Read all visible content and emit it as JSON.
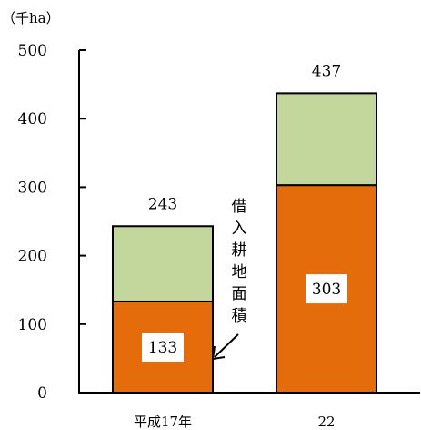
{
  "chart_data": {
    "type": "bar",
    "stacked": true,
    "unit_label": "（千ha）",
    "categories": [
      "平成17年",
      "22"
    ],
    "series": [
      {
        "values": [
          133,
          303
        ],
        "color": "#E46C0A"
      },
      {
        "values": [
          110,
          134
        ],
        "color": "#C3D69B"
      }
    ],
    "totals": [
      243,
      437
    ],
    "ylim": [
      0,
      500
    ],
    "yticks": [
      0,
      100,
      200,
      300,
      400,
      500
    ],
    "annotation": {
      "text": "借入耕地面積",
      "points_to_category": 0
    },
    "grid": false,
    "legend": "none"
  }
}
